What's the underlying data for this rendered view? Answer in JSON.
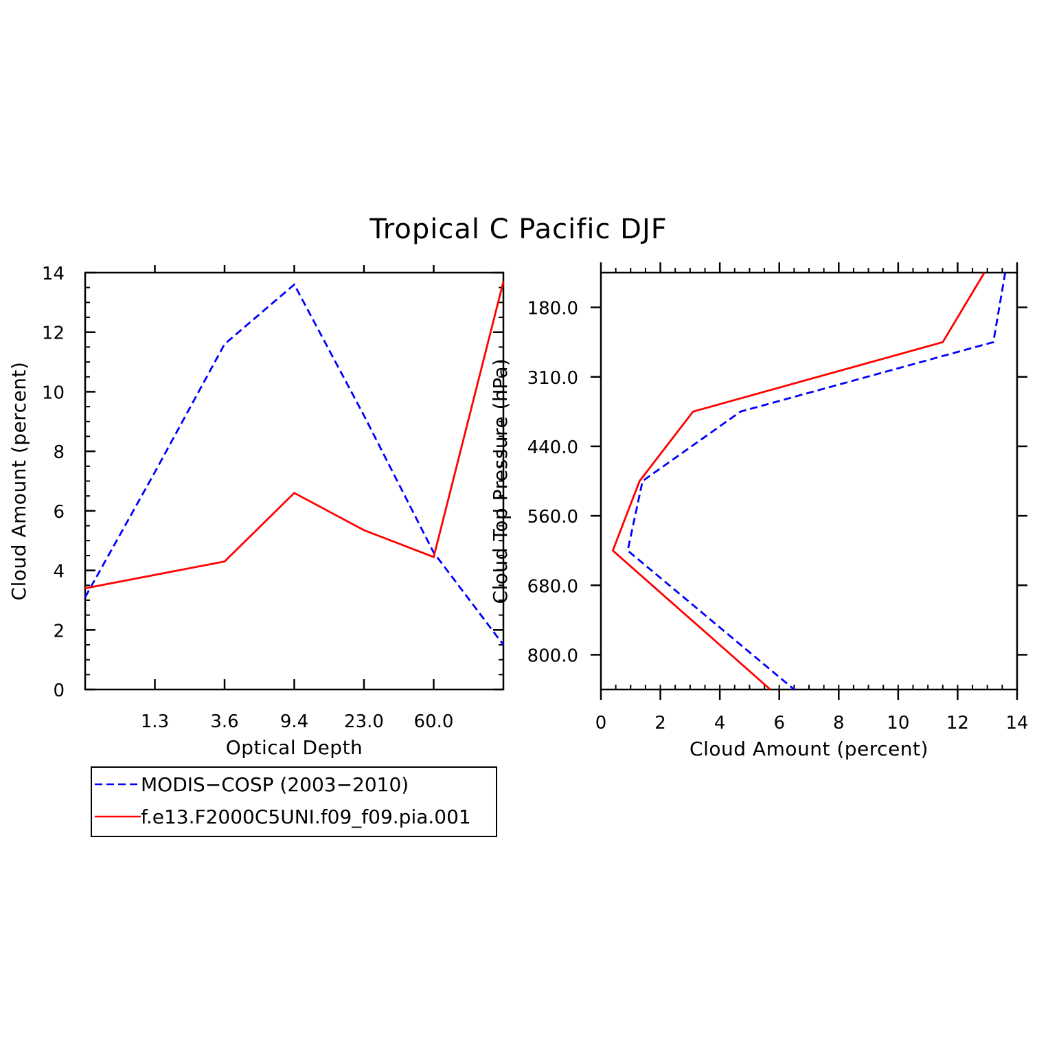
{
  "title": "Tropical C Pacific DJF",
  "colors": {
    "modis": "#0000ff",
    "model": "#ff0000",
    "axis": "#000000"
  },
  "legend": {
    "items": [
      {
        "label": "MODIS−COSP (2003−2010)",
        "style": "dashed",
        "color": "#0000ff"
      },
      {
        "label": "f.e13.F2000C5UNI.f09_f09.pia.001",
        "style": "solid",
        "color": "#ff0000"
      }
    ]
  },
  "chart_data": [
    {
      "type": "line",
      "name": "optical-depth-panel",
      "xlabel": "Optical Depth",
      "ylabel": "Cloud Amount (percent)",
      "x_bins": [
        1,
        2,
        3,
        4,
        5,
        6
      ],
      "xlim": [
        0.5,
        6.5
      ],
      "ylim": [
        0,
        14
      ],
      "xticks": [
        1.5,
        2.5,
        3.5,
        4.5,
        5.5
      ],
      "xtick_labels": [
        "1.3",
        "3.6",
        "9.4",
        "23.0",
        "60.0"
      ],
      "yticks": [
        0,
        2,
        4,
        6,
        8,
        10,
        12,
        14
      ],
      "ytick_labels": [
        "0",
        "2",
        "4",
        "6",
        "8",
        "10",
        "12",
        "14"
      ],
      "series": [
        {
          "name": "MODIS−COSP (2003−2010)",
          "x": [
            0.5,
            1.5,
            2.5,
            3.5,
            4.5,
            5.5,
            6.5
          ],
          "values": [
            3.1,
            7.3,
            11.6,
            13.6,
            9.2,
            4.6,
            1.5
          ]
        },
        {
          "name": "f.e13.F2000C5UNI.f09_f09.pia.001",
          "x": [
            0.5,
            1.5,
            2.5,
            3.5,
            4.5,
            5.5,
            6.5
          ],
          "values": [
            3.4,
            3.85,
            4.3,
            6.6,
            5.35,
            4.45,
            13.7
          ]
        }
      ]
    },
    {
      "type": "line",
      "name": "pressure-panel",
      "xlabel": "Cloud Amount (percent)",
      "ylabel": "Cloud Top Pressure (hPa)",
      "xlim": [
        0,
        14
      ],
      "ylim": [
        0.5,
        6.5
      ],
      "y_inverted": true,
      "xticks": [
        0,
        2,
        4,
        6,
        8,
        10,
        12,
        14
      ],
      "xtick_labels": [
        "0",
        "2",
        "4",
        "6",
        "8",
        "10",
        "12",
        "14"
      ],
      "yticks": [
        1,
        2,
        3,
        4,
        5,
        6
      ],
      "ytick_labels": [
        "180.0",
        "310.0",
        "440.0",
        "560.0",
        "680.0",
        "800.0"
      ],
      "series": [
        {
          "name": "MODIS−COSP (2003−2010)",
          "x": [
            13.6,
            13.2,
            4.7,
            1.4,
            0.9,
            6.5
          ],
          "y": [
            0.5,
            1.5,
            2.5,
            3.5,
            4.5,
            6.5
          ]
        },
        {
          "name": "f.e13.F2000C5UNI.f09_f09.pia.001",
          "x": [
            12.9,
            11.5,
            3.1,
            1.3,
            0.4,
            5.7
          ],
          "y": [
            0.5,
            1.5,
            2.5,
            3.5,
            4.5,
            6.5
          ]
        }
      ]
    }
  ]
}
